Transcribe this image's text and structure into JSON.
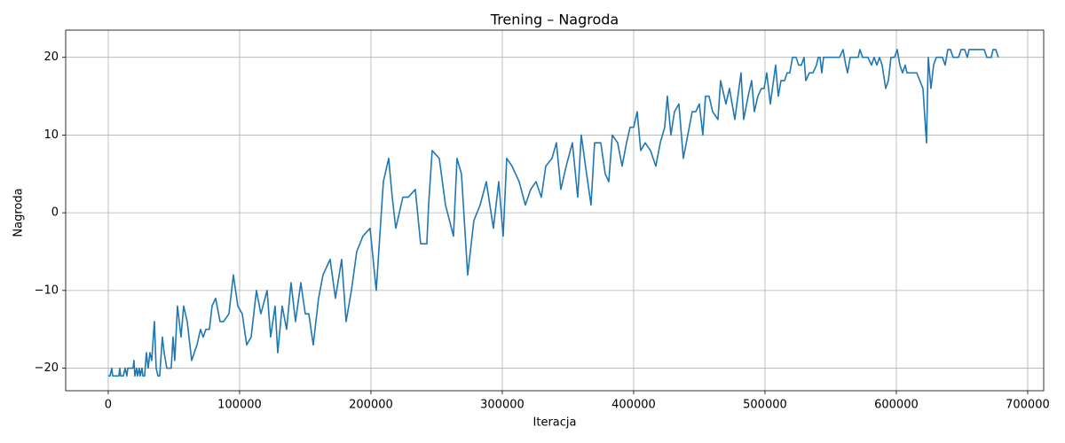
{
  "chart_data": {
    "type": "line",
    "title": "Trening – Nagroda",
    "x_label": "Iteracja",
    "y_label": "Nagroda",
    "xlim": [
      -32400,
      712200
    ],
    "ylim": [
      -22.9,
      23.5
    ],
    "xticks": [
      0,
      100000,
      200000,
      300000,
      400000,
      500000,
      600000,
      700000
    ],
    "yticks": [
      {
        "value": -20,
        "label": "−20"
      },
      {
        "value": -10,
        "label": "−10"
      },
      0,
      10,
      20
    ],
    "grid": true,
    "x": [
      0,
      1352,
      2703,
      3378,
      6081,
      8108,
      8784,
      9459,
      11486,
      12838,
      14189,
      14865,
      17568,
      18919,
      19595,
      20270,
      21622,
      22297,
      23649,
      24324,
      25676,
      26351,
      27703,
      29054,
      30405,
      31757,
      33108,
      35135,
      36486,
      37838,
      39189,
      41216,
      42568,
      44595,
      47973,
      49324,
      50676,
      52703,
      55405,
      57432,
      60135,
      61486,
      63514,
      67568,
      70270,
      72297,
      74324,
      77027,
      79054,
      81757,
      85135,
      87838,
      91892,
      95270,
      98649,
      102027,
      105405,
      108784,
      112838,
      116216,
      120946,
      123649,
      127027,
      129054,
      132432,
      135811,
      139189,
      142568,
      146622,
      150000,
      152703,
      156081,
      160135,
      163514,
      168919,
      172973,
      177703,
      181081,
      185135,
      189189,
      193919,
      199324,
      204054,
      206757,
      209459,
      213514,
      216216,
      218919,
      221622,
      224324,
      228378,
      233784,
      237838,
      242568,
      243919,
      246622,
      252027,
      256757,
      262838,
      265541,
      268919,
      273649,
      278378,
      283108,
      287838,
      293243,
      297297,
      300676,
      303378,
      307432,
      312838,
      317568,
      321622,
      325676,
      329730,
      333108,
      337838,
      341216,
      344595,
      348649,
      353378,
      357432,
      360135,
      364189,
      367568,
      370270,
      375000,
      378378,
      381081,
      383784,
      387838,
      391216,
      394595,
      397297,
      400000,
      402703,
      405405,
      408784,
      412838,
      416892,
      420270,
      423649,
      425676,
      428378,
      431081,
      434459,
      437838,
      441216,
      444595,
      447297,
      450000,
      452703,
      454730,
      457432,
      460135,
      464189,
      466216,
      470270,
      472973,
      475000,
      477027,
      481757,
      483784,
      487162,
      489865,
      491892,
      494595,
      497297,
      499324,
      501351,
      504054,
      508108,
      510135,
      512162,
      514865,
      516892,
      518919,
      520946,
      523649,
      525676,
      527703,
      529730,
      531081,
      533784,
      536486,
      539189,
      540541,
      541892,
      543243,
      544595,
      547297,
      552703,
      556757,
      559459,
      561486,
      562838,
      564865,
      568243,
      570946,
      572297,
      574324,
      578378,
      581081,
      583108,
      585135,
      587162,
      589189,
      591892,
      593919,
      595946,
      598649,
      600676,
      602703,
      604730,
      606757,
      608108,
      612162,
      615541,
      620270,
      622973,
      624324,
      626351,
      628378,
      630405,
      633784,
      635135,
      637162,
      639189,
      641216,
      643243,
      647297,
      649324,
      652027,
      654054,
      655405,
      660811,
      664865,
      666892,
      668919,
      672297,
      673649,
      675676,
      677703
    ],
    "series": [
      {
        "name": "Nagroda",
        "color": "#1f77b4",
        "values": [
          -21,
          -21,
          -20,
          -21,
          -21,
          -21,
          -20,
          -21,
          -21,
          -20,
          -21,
          -20,
          -20,
          -20,
          -19,
          -21,
          -20,
          -21,
          -20,
          -21,
          -20,
          -21,
          -21,
          -18,
          -20,
          -18,
          -19,
          -14,
          -20,
          -21,
          -21,
          -16,
          -18,
          -20,
          -20,
          -16,
          -19,
          -12,
          -16,
          -12,
          -14,
          -16,
          -19,
          -17,
          -15,
          -16,
          -15,
          -15,
          -12,
          -11,
          -14,
          -14,
          -13,
          -8,
          -12,
          -13,
          -17,
          -16,
          -10,
          -13,
          -10,
          -16,
          -12,
          -18,
          -12,
          -15,
          -9,
          -14,
          -9,
          -13,
          -13,
          -17,
          -11,
          -8,
          -6,
          -11,
          -6,
          -14,
          -10,
          -5,
          -3,
          -2,
          -10,
          -3,
          4,
          7,
          2,
          -2,
          0,
          2,
          2,
          3,
          -4,
          -4,
          1,
          8,
          7,
          1,
          -3,
          7,
          5,
          -8,
          -1,
          1,
          4,
          -2,
          4,
          -3,
          7,
          6,
          4,
          1,
          3,
          4,
          2,
          6,
          7,
          9,
          3,
          6,
          9,
          2,
          10,
          5,
          1,
          9,
          9,
          5,
          4,
          10,
          9,
          6,
          9,
          11,
          11,
          13,
          8,
          9,
          8,
          6,
          9,
          11,
          15,
          10,
          13,
          14,
          7,
          10,
          13,
          13,
          14,
          10,
          15,
          15,
          13,
          12,
          17,
          14,
          16,
          14,
          12,
          18,
          12,
          15,
          17,
          13,
          15,
          16,
          16,
          18,
          14,
          19,
          15,
          17,
          17,
          18,
          18,
          20,
          20,
          19,
          19,
          20,
          17,
          18,
          18,
          19,
          20,
          20,
          18,
          20,
          20,
          20,
          20,
          21,
          19,
          18,
          20,
          20,
          20,
          21,
          20,
          20,
          19,
          20,
          19,
          20,
          19,
          16,
          17,
          20,
          20,
          21,
          19,
          18,
          19,
          18,
          18,
          18,
          16,
          9,
          20,
          16,
          19,
          20,
          20,
          20,
          19,
          21,
          21,
          20,
          20,
          21,
          21,
          20,
          21,
          21,
          21,
          21,
          20,
          20,
          21,
          21,
          20
        ]
      }
    ]
  }
}
